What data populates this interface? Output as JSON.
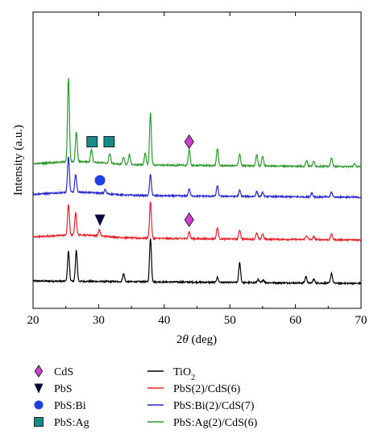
{
  "chart_data": {
    "type": "line",
    "xlabel_prefix": "2",
    "xlabel_symbol": "θ",
    "xlabel_suffix": " (deg)",
    "ylabel": "Intensity (a.u.)",
    "xlim": [
      20,
      70
    ],
    "x_ticks": [
      20,
      30,
      40,
      50,
      60,
      70
    ],
    "grid": false,
    "legend_position": "bottom",
    "series": [
      {
        "name_main": "TiO",
        "name_sub": "2",
        "color": "#000000",
        "baseline": 0.0,
        "peaks": [
          [
            25.4,
            60
          ],
          [
            26.6,
            62
          ],
          [
            33.8,
            16
          ],
          [
            37.9,
            88
          ],
          [
            48.1,
            10
          ],
          [
            51.5,
            40
          ],
          [
            54.3,
            6
          ],
          [
            55.1,
            6
          ],
          [
            61.6,
            13
          ],
          [
            62.8,
            8
          ],
          [
            65.5,
            20
          ]
        ]
      },
      {
        "name_main": "PbS(2)/CdS(6)",
        "name_sub": "",
        "color": "#e8202a",
        "baseline": 1.0,
        "peaks": [
          [
            25.4,
            62
          ],
          [
            26.5,
            45
          ],
          [
            30.1,
            12
          ],
          [
            37.9,
            74
          ],
          [
            43.8,
            14
          ],
          [
            48.1,
            22
          ],
          [
            51.5,
            18
          ],
          [
            54.1,
            12
          ],
          [
            55.0,
            10
          ],
          [
            61.7,
            8
          ],
          [
            62.8,
            6
          ],
          [
            65.5,
            12
          ]
        ]
      },
      {
        "name_main": "PbS:Bi(2)/CdS(7)",
        "name_sub": "",
        "color": "#2a2ad0",
        "baseline": 2.0,
        "peaks": [
          [
            25.4,
            72
          ],
          [
            26.5,
            36
          ],
          [
            31.0,
            8
          ],
          [
            37.9,
            42
          ],
          [
            43.8,
            14
          ],
          [
            48.1,
            20
          ],
          [
            51.5,
            12
          ],
          [
            54.1,
            10
          ],
          [
            55.0,
            8
          ],
          [
            62.5,
            8
          ],
          [
            65.5,
            10
          ]
        ]
      },
      {
        "name_main": "PbS:Ag(2)/CdS(6)",
        "name_sub": "",
        "color": "#2e9a2e",
        "baseline": 3.0,
        "peaks": [
          [
            25.4,
            168
          ],
          [
            26.6,
            60
          ],
          [
            28.9,
            26
          ],
          [
            31.7,
            20
          ],
          [
            33.8,
            14
          ],
          [
            34.7,
            20
          ],
          [
            37.1,
            24
          ],
          [
            37.9,
            104
          ],
          [
            43.8,
            32
          ],
          [
            48.1,
            34
          ],
          [
            51.5,
            24
          ],
          [
            54.1,
            22
          ],
          [
            55.0,
            20
          ],
          [
            61.7,
            12
          ],
          [
            62.8,
            10
          ],
          [
            65.5,
            18
          ],
          [
            69.0,
            6
          ]
        ]
      }
    ],
    "markers": [
      {
        "label": "CdS",
        "shape": "diamond",
        "color": "#d040d0",
        "x": 43.8,
        "row": 3
      },
      {
        "label": "CdS",
        "shape": "diamond",
        "color": "#d040d0",
        "x": 43.8,
        "row": 1
      },
      {
        "label": "PbS",
        "shape": "triangle-down",
        "color": "#0a0a3a",
        "x": 30.2,
        "row": 1
      },
      {
        "label": "PbS:Bi",
        "shape": "circle",
        "color": "#1f3fe0",
        "x": 30.2,
        "row": 2
      },
      {
        "label": "PbS:Ag",
        "shape": "square",
        "color": "#1a8a86",
        "x": 29.0,
        "row": 3
      },
      {
        "label": "PbS:Ag",
        "shape": "square",
        "color": "#1a8a86",
        "x": 31.6,
        "row": 3
      }
    ],
    "marker_legend": [
      {
        "shape": "diamond",
        "color": "#d040d0",
        "label": "CdS"
      },
      {
        "shape": "triangle-down",
        "color": "#0a0a3a",
        "label": "PbS"
      },
      {
        "shape": "circle",
        "color": "#1f3fe0",
        "label": "PbS:Bi"
      },
      {
        "shape": "square",
        "color": "#1a8a86",
        "label": "PbS:Ag"
      }
    ]
  }
}
